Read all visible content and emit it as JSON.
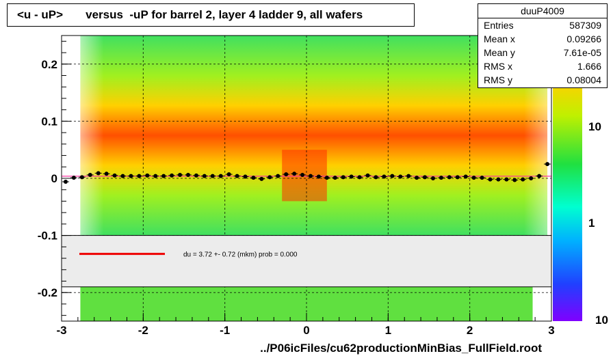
{
  "title": "<u - uP>       versus  -uP for barrel 2, layer 4 ladder 9, all wafers",
  "stats": {
    "name": "duuP4009",
    "rows": [
      {
        "label": "Entries",
        "value": "587309"
      },
      {
        "label": "Mean x",
        "value": "0.09266"
      },
      {
        "label": "Mean y",
        "value": "7.61e-05"
      },
      {
        "label": "RMS x",
        "value": "1.666"
      },
      {
        "label": "RMS y",
        "value": "0.08004"
      }
    ]
  },
  "x_caption": "../P06icFiles/cu62productionMinBias_FullField.root",
  "fit_legend": "du =    3.72 +-  0.72 (mkm) prob = 0.000",
  "colors": {
    "fit_line": "#ee0000",
    "profile_points": "#000000",
    "grid": "#000000"
  },
  "chart_data": {
    "type": "heatmap",
    "xlim": [
      -3,
      3
    ],
    "ylim": [
      -0.25,
      0.25
    ],
    "x_ticks": [
      -3,
      -2,
      -1,
      0,
      1,
      2,
      3
    ],
    "x_tick_labels": [
      "-3",
      "-2",
      "-1",
      "0",
      "1",
      "2",
      "3"
    ],
    "y_ticks": [
      -0.2,
      -0.1,
      0,
      0.1,
      0.2
    ],
    "y_tick_labels": [
      "-0.2",
      "-0.1",
      "0",
      "0.1",
      "0.2"
    ],
    "grid": true,
    "colorbar": {
      "scale": "log",
      "tick_labels": [
        "10",
        "1",
        "10"
      ]
    },
    "profile": {
      "x": [
        -2.95,
        -2.85,
        -2.75,
        -2.65,
        -2.55,
        -2.45,
        -2.35,
        -2.25,
        -2.15,
        -2.05,
        -1.95,
        -1.85,
        -1.75,
        -1.65,
        -1.55,
        -1.45,
        -1.35,
        -1.25,
        -1.15,
        -1.05,
        -0.95,
        -0.85,
        -0.75,
        -0.65,
        -0.55,
        -0.45,
        -0.35,
        -0.25,
        -0.15,
        -0.05,
        0.05,
        0.15,
        0.25,
        0.35,
        0.45,
        0.55,
        0.65,
        0.75,
        0.85,
        0.95,
        1.05,
        1.15,
        1.25,
        1.35,
        1.45,
        1.55,
        1.65,
        1.75,
        1.85,
        1.95,
        2.05,
        2.15,
        2.25,
        2.35,
        2.45,
        2.55,
        2.65,
        2.75,
        2.85,
        2.95
      ],
      "y": [
        -0.006,
        0.001,
        0.002,
        0.006,
        0.009,
        0.008,
        0.005,
        0.004,
        0.004,
        0.004,
        0.005,
        0.004,
        0.004,
        0.005,
        0.006,
        0.006,
        0.005,
        0.004,
        0.004,
        0.004,
        0.007,
        0.004,
        0.003,
        0.001,
        -0.001,
        0.002,
        0.004,
        0.007,
        0.008,
        0.006,
        0.004,
        0.003,
        0.001,
        0.001,
        0.002,
        0.003,
        0.002,
        0.005,
        0.002,
        0.003,
        0.004,
        0.003,
        0.004,
        0.001,
        0.002,
        0.0,
        0.001,
        0.002,
        0.002,
        0.003,
        0.001,
        0.001,
        -0.002,
        -0.002,
        -0.002,
        -0.003,
        -0.002,
        0.0,
        0.004,
        0.025
      ]
    },
    "fit": {
      "y": 0.00372
    }
  }
}
